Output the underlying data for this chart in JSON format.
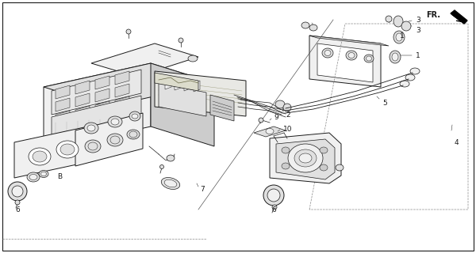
{
  "bg": "#ffffff",
  "lc": "#1a1a1a",
  "lc_light": "#666666",
  "fill_light": "#f0f0f0",
  "fill_mid": "#e0e0e0",
  "fill_dark": "#cccccc",
  "fig_w": 6.0,
  "fig_h": 3.2,
  "dpi": 100
}
